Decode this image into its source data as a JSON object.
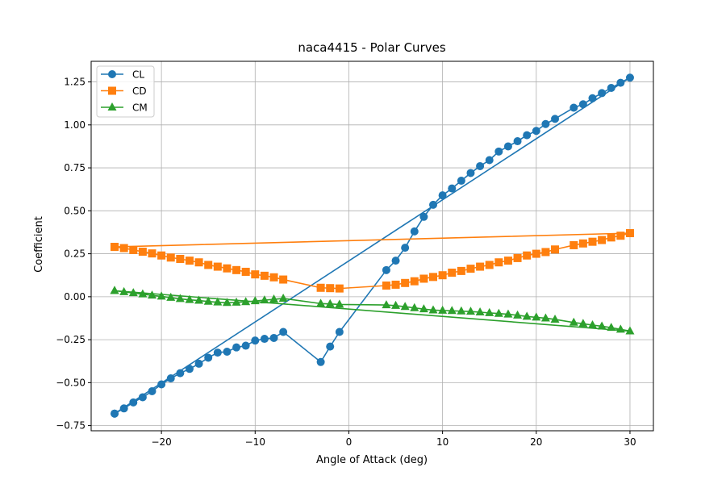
{
  "chart_data": {
    "type": "line",
    "title": "naca4415 - Polar Curves",
    "xlabel": "Angle of Attack (deg)",
    "ylabel": "Coefficient",
    "xlim": [
      -27.5,
      32.5
    ],
    "ylim": [
      -0.78,
      1.37
    ],
    "grid": true,
    "legend_position": "top-left",
    "x_ticks": [
      -20,
      -10,
      0,
      10,
      20,
      30
    ],
    "x_tick_labels": [
      "−20",
      "−10",
      "0",
      "10",
      "20",
      "30"
    ],
    "y_ticks": [
      -0.75,
      -0.5,
      -0.25,
      0.0,
      0.25,
      0.5,
      0.75,
      1.0,
      1.25
    ],
    "y_tick_labels": [
      "−0.75",
      "−0.50",
      "−0.25",
      "0.00",
      "0.25",
      "0.50",
      "0.75",
      "1.00",
      "1.25"
    ],
    "series": [
      {
        "name": "CL",
        "color": "#1f77b4",
        "marker": "circle",
        "x": [
          -25,
          -24,
          -23,
          -22,
          -21,
          -20,
          -19,
          -18,
          -17,
          -16,
          -15,
          -14,
          -13,
          -12,
          -11,
          -10,
          -9,
          -8,
          -7,
          -3,
          -2,
          -1,
          4,
          5,
          6,
          7,
          8,
          9,
          10,
          11,
          12,
          13,
          14,
          15,
          16,
          17,
          18,
          19,
          20,
          21,
          22,
          24,
          25,
          26,
          27,
          28,
          29,
          30,
          -25
        ],
        "y": [
          -0.68,
          -0.65,
          -0.615,
          -0.585,
          -0.55,
          -0.51,
          -0.475,
          -0.445,
          -0.42,
          -0.39,
          -0.355,
          -0.325,
          -0.32,
          -0.295,
          -0.285,
          -0.255,
          -0.245,
          -0.24,
          -0.205,
          -0.38,
          -0.29,
          -0.205,
          0.155,
          0.21,
          0.285,
          0.38,
          0.465,
          0.535,
          0.59,
          0.63,
          0.675,
          0.72,
          0.76,
          0.795,
          0.845,
          0.875,
          0.905,
          0.94,
          0.965,
          1.005,
          1.035,
          1.1,
          1.12,
          1.155,
          1.185,
          1.215,
          1.245,
          1.275,
          -0.68
        ]
      },
      {
        "name": "CD",
        "color": "#ff7f0e",
        "marker": "square",
        "x": [
          -25,
          -24,
          -23,
          -22,
          -21,
          -20,
          -19,
          -18,
          -17,
          -16,
          -15,
          -14,
          -13,
          -12,
          -11,
          -10,
          -9,
          -8,
          -7,
          -3,
          -2,
          -1,
          4,
          5,
          6,
          7,
          8,
          9,
          10,
          11,
          12,
          13,
          14,
          15,
          16,
          17,
          18,
          19,
          20,
          21,
          22,
          24,
          25,
          26,
          27,
          28,
          29,
          30,
          -25
        ],
        "y": [
          0.29,
          0.283,
          0.272,
          0.262,
          0.252,
          0.24,
          0.228,
          0.22,
          0.21,
          0.2,
          0.185,
          0.175,
          0.165,
          0.155,
          0.145,
          0.13,
          0.122,
          0.113,
          0.1,
          0.052,
          0.05,
          0.048,
          0.065,
          0.07,
          0.08,
          0.09,
          0.105,
          0.115,
          0.125,
          0.14,
          0.15,
          0.163,
          0.175,
          0.185,
          0.2,
          0.21,
          0.225,
          0.24,
          0.25,
          0.26,
          0.275,
          0.3,
          0.31,
          0.32,
          0.33,
          0.345,
          0.355,
          0.37,
          0.29
        ]
      },
      {
        "name": "CM",
        "color": "#2ca02c",
        "marker": "triangle",
        "x": [
          -25,
          -24,
          -23,
          -22,
          -21,
          -20,
          -19,
          -18,
          -17,
          -16,
          -15,
          -14,
          -13,
          -12,
          -11,
          -10,
          -9,
          -8,
          -7,
          -3,
          -2,
          -1,
          4,
          5,
          6,
          7,
          8,
          9,
          10,
          11,
          12,
          13,
          14,
          15,
          16,
          17,
          18,
          19,
          20,
          21,
          22,
          24,
          25,
          26,
          27,
          28,
          29,
          30,
          -25
        ],
        "y": [
          0.035,
          0.028,
          0.022,
          0.015,
          0.008,
          0.002,
          -0.005,
          -0.012,
          -0.018,
          -0.022,
          -0.028,
          -0.032,
          -0.035,
          -0.033,
          -0.03,
          -0.025,
          -0.02,
          -0.015,
          -0.01,
          -0.04,
          -0.042,
          -0.045,
          -0.048,
          -0.052,
          -0.058,
          -0.065,
          -0.072,
          -0.078,
          -0.08,
          -0.082,
          -0.084,
          -0.086,
          -0.09,
          -0.094,
          -0.098,
          -0.102,
          -0.108,
          -0.115,
          -0.12,
          -0.125,
          -0.132,
          -0.15,
          -0.157,
          -0.165,
          -0.172,
          -0.18,
          -0.19,
          -0.2,
          0.035
        ]
      }
    ]
  }
}
